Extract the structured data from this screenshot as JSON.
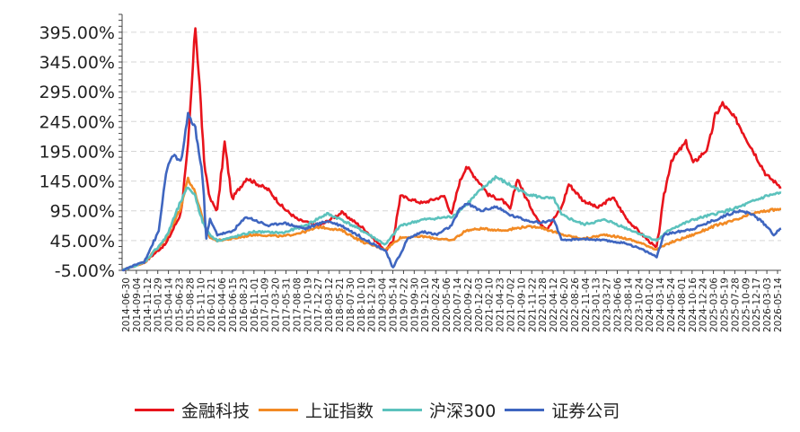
{
  "chart_data": {
    "type": "line",
    "title": "",
    "xlabel": "",
    "ylabel": "",
    "y_ticks": [
      "395.00%",
      "345.00%",
      "295.00%",
      "245.00%",
      "195.00%",
      "145.00%",
      "95.00%",
      "45.00%",
      "-5.00%"
    ],
    "ylim": [
      -5,
      425
    ],
    "x_tick_labels": [
      "2014-06-30",
      "2014-09-04",
      "2014-11-12",
      "2015-01-29",
      "2015-04-14",
      "2015-06-23",
      "2015-08-28",
      "2015-11-10",
      "2016-01-21",
      "2016-04-06",
      "2016-06-15",
      "2016-08-23",
      "2016-11-01",
      "2017-01-09",
      "2017-03-20",
      "2017-05-31",
      "2017-08-08",
      "2017-10-19",
      "2017-12-27",
      "2018-03-12",
      "2018-05-21",
      "2018-07-30",
      "2018-10-10",
      "2018-12-19",
      "2019-03-04",
      "2019-05-14",
      "2019-07-22",
      "2019-09-30",
      "2019-12-10",
      "2020-02-24",
      "2020-05-06",
      "2020-07-14",
      "2020-09-22",
      "2020-12-03",
      "2021-02-10",
      "2021-04-23",
      "2021-07-02",
      "2021-09-10",
      "2021-11-22",
      "2022-01-28",
      "2022-04-12",
      "2022-06-20",
      "2022-08-26",
      "2022-11-04",
      "2023-01-13",
      "2023-03-27",
      "2023-06-06",
      "2023-08-14",
      "2023-10-24",
      "2024-01-02",
      "2024-03-14",
      "2024-05-24",
      "2024-08-01",
      "2024-10-16",
      "2024-12-24",
      "2025-03-06",
      "2025-05-19",
      "2025-07-28",
      "2025-10-09",
      "2025-12-17",
      "2026-03-03",
      "2026-05-14"
    ],
    "grid": "horizontal-dashed",
    "legend_position": "bottom",
    "series": [
      {
        "name": "金融科技",
        "color": "#e8141c",
        "points": [
          [
            0,
            -5
          ],
          [
            3,
            8
          ],
          [
            6,
            40
          ],
          [
            8,
            90
          ],
          [
            9,
            200
          ],
          [
            10,
            405
          ],
          [
            10.6,
            305
          ],
          [
            11.2,
            175
          ],
          [
            12,
            115
          ],
          [
            13,
            95
          ],
          [
            14,
            210
          ],
          [
            15,
            115
          ],
          [
            17,
            150
          ],
          [
            20,
            130
          ],
          [
            22,
            100
          ],
          [
            24,
            80
          ],
          [
            27,
            70
          ],
          [
            30,
            92
          ],
          [
            33,
            65
          ],
          [
            35,
            40
          ],
          [
            36,
            28
          ],
          [
            37,
            45
          ],
          [
            38,
            120
          ],
          [
            41,
            108
          ],
          [
            44,
            120
          ],
          [
            45,
            88
          ],
          [
            46,
            140
          ],
          [
            47,
            170
          ],
          [
            49,
            140
          ],
          [
            50,
            122
          ],
          [
            52,
            112
          ],
          [
            53,
            97
          ],
          [
            54,
            150
          ],
          [
            55,
            120
          ],
          [
            57,
            75
          ],
          [
            58,
            65
          ],
          [
            60,
            100
          ],
          [
            61,
            140
          ],
          [
            63,
            112
          ],
          [
            65,
            100
          ],
          [
            67,
            118
          ],
          [
            69,
            80
          ],
          [
            71,
            55
          ],
          [
            73,
            32
          ],
          [
            74,
            120
          ],
          [
            75,
            180
          ],
          [
            77,
            210
          ],
          [
            78,
            175
          ],
          [
            80,
            200
          ],
          [
            81,
            255
          ],
          [
            82,
            275
          ],
          [
            84,
            245
          ],
          [
            86,
            200
          ],
          [
            88,
            155
          ],
          [
            89,
            145
          ],
          [
            90,
            135
          ]
        ]
      },
      {
        "name": "上证指数",
        "color": "#f28a24",
        "points": [
          [
            0,
            -5
          ],
          [
            3,
            8
          ],
          [
            6,
            48
          ],
          [
            8,
            100
          ],
          [
            9,
            150
          ],
          [
            10,
            125
          ],
          [
            11,
            80
          ],
          [
            12,
            50
          ],
          [
            13,
            45
          ],
          [
            15,
            48
          ],
          [
            18,
            55
          ],
          [
            22,
            52
          ],
          [
            25,
            60
          ],
          [
            27,
            68
          ],
          [
            30,
            62
          ],
          [
            33,
            42
          ],
          [
            36,
            30
          ],
          [
            38,
            50
          ],
          [
            41,
            52
          ],
          [
            45,
            45
          ],
          [
            47,
            62
          ],
          [
            49,
            65
          ],
          [
            52,
            62
          ],
          [
            55,
            68
          ],
          [
            57,
            68
          ],
          [
            60,
            55
          ],
          [
            63,
            48
          ],
          [
            66,
            55
          ],
          [
            69,
            48
          ],
          [
            71,
            40
          ],
          [
            73,
            30
          ],
          [
            75,
            42
          ],
          [
            78,
            55
          ],
          [
            81,
            70
          ],
          [
            84,
            80
          ],
          [
            86,
            90
          ],
          [
            88,
            95
          ],
          [
            90,
            98
          ]
        ]
      },
      {
        "name": "沪深300",
        "color": "#5cc2bd",
        "points": [
          [
            0,
            -5
          ],
          [
            3,
            8
          ],
          [
            6,
            50
          ],
          [
            8,
            110
          ],
          [
            9,
            135
          ],
          [
            10,
            120
          ],
          [
            11,
            75
          ],
          [
            12,
            55
          ],
          [
            13,
            45
          ],
          [
            15,
            50
          ],
          [
            18,
            60
          ],
          [
            22,
            58
          ],
          [
            25,
            70
          ],
          [
            28,
            90
          ],
          [
            30,
            80
          ],
          [
            33,
            60
          ],
          [
            36,
            38
          ],
          [
            38,
            70
          ],
          [
            41,
            80
          ],
          [
            45,
            85
          ],
          [
            47,
            105
          ],
          [
            49,
            130
          ],
          [
            51,
            152
          ],
          [
            53,
            138
          ],
          [
            55,
            125
          ],
          [
            57,
            118
          ],
          [
            59,
            115
          ],
          [
            60,
            88
          ],
          [
            63,
            72
          ],
          [
            66,
            80
          ],
          [
            69,
            65
          ],
          [
            71,
            55
          ],
          [
            73,
            45
          ],
          [
            75,
            65
          ],
          [
            78,
            80
          ],
          [
            81,
            90
          ],
          [
            84,
            100
          ],
          [
            86,
            110
          ],
          [
            88,
            120
          ],
          [
            90,
            125
          ]
        ]
      },
      {
        "name": "证券公司",
        "color": "#3f66c0",
        "points": [
          [
            0,
            -5
          ],
          [
            3,
            10
          ],
          [
            5,
            60
          ],
          [
            6,
            160
          ],
          [
            7,
            190
          ],
          [
            8,
            175
          ],
          [
            9,
            255
          ],
          [
            10,
            235
          ],
          [
            11,
            150
          ],
          [
            11.5,
            50
          ],
          [
            12,
            80
          ],
          [
            13,
            55
          ],
          [
            15,
            60
          ],
          [
            17,
            85
          ],
          [
            20,
            70
          ],
          [
            22,
            75
          ],
          [
            25,
            65
          ],
          [
            28,
            78
          ],
          [
            30,
            70
          ],
          [
            33,
            48
          ],
          [
            36,
            28
          ],
          [
            37,
            -2
          ],
          [
            39,
            48
          ],
          [
            41,
            60
          ],
          [
            43,
            55
          ],
          [
            45,
            70
          ],
          [
            46,
            95
          ],
          [
            47,
            108
          ],
          [
            49,
            95
          ],
          [
            51,
            102
          ],
          [
            53,
            88
          ],
          [
            55,
            80
          ],
          [
            57,
            75
          ],
          [
            59,
            80
          ],
          [
            60,
            45
          ],
          [
            63,
            48
          ],
          [
            66,
            45
          ],
          [
            69,
            40
          ],
          [
            71,
            30
          ],
          [
            73,
            18
          ],
          [
            74,
            55
          ],
          [
            76,
            60
          ],
          [
            78,
            65
          ],
          [
            81,
            80
          ],
          [
            84,
            95
          ],
          [
            86,
            90
          ],
          [
            88,
            70
          ],
          [
            89,
            55
          ],
          [
            90,
            65
          ]
        ]
      }
    ]
  }
}
